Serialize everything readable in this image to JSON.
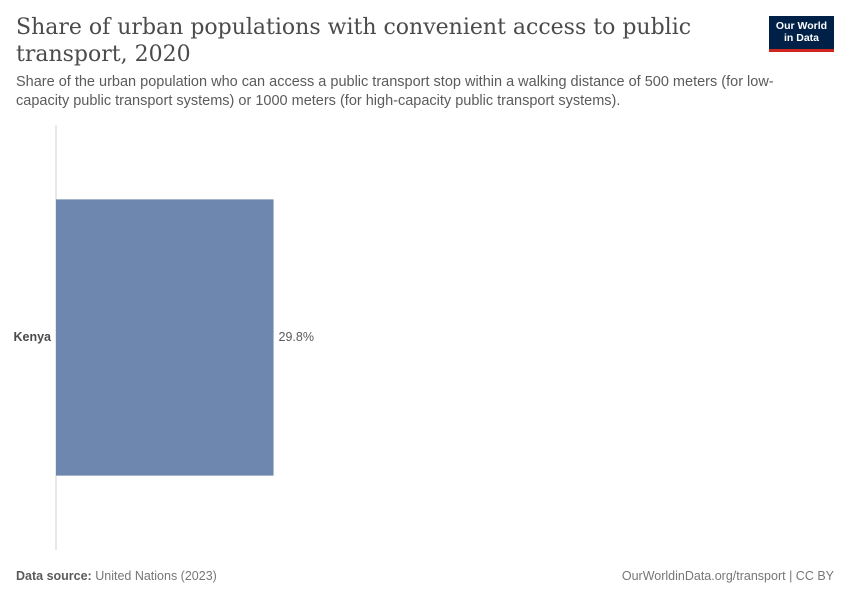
{
  "header": {
    "title": "Share of urban populations with convenient access to public transport, 2020",
    "subtitle": "Share of the urban population who can access a public transport stop within a walking distance of 500 meters (for low-capacity public transport systems) or 1000 meters (for high-capacity public transport systems).",
    "logo_line1": "Our World",
    "logo_line2": "in Data"
  },
  "footer": {
    "source_label": "Data source:",
    "source_value": "United Nations (2023)",
    "link_text": "OurWorldinData.org/transport",
    "separator": " | ",
    "license": "CC BY"
  },
  "colors": {
    "bar": "#6d87ae",
    "axis": "#d0d0d0",
    "logo_bg": "#002147",
    "logo_accent": "#ce261e"
  },
  "chart_data": {
    "type": "bar",
    "orientation": "horizontal",
    "categories": [
      "Kenya"
    ],
    "values": [
      29.8
    ],
    "value_labels": [
      "29.8%"
    ],
    "unit": "%",
    "xlim": [
      0,
      100
    ],
    "grid": false,
    "legend": "none"
  }
}
